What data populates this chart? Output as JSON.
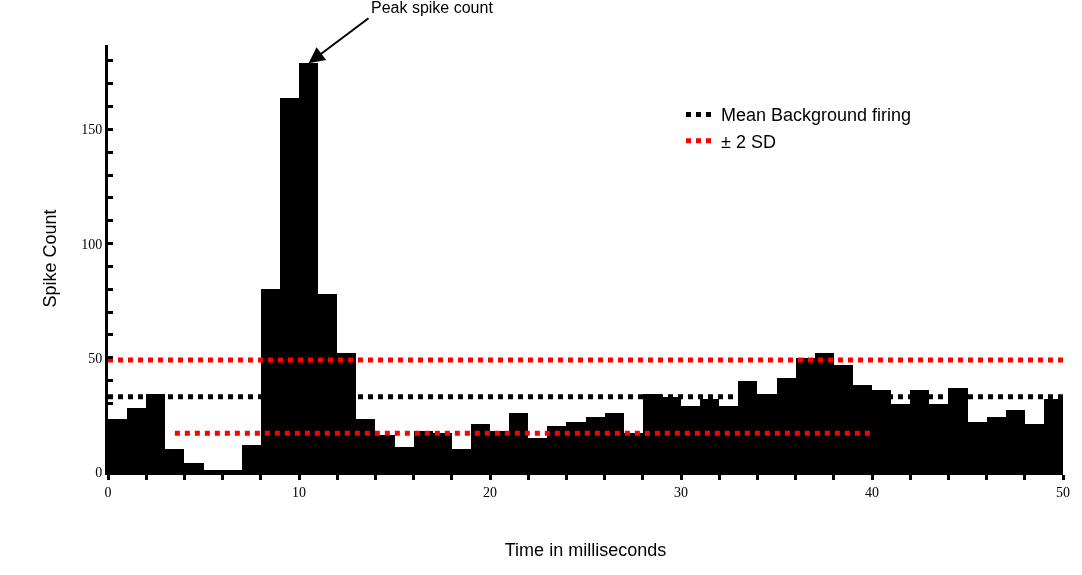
{
  "chart_data": {
    "type": "histogram",
    "xlabel": "Time in milliseconds",
    "ylabel": "Spike Count",
    "bins": [
      0,
      1,
      2,
      3,
      4,
      5,
      6,
      7,
      8,
      9,
      10,
      11,
      12,
      13,
      14,
      15,
      16,
      17,
      18,
      19,
      20,
      21,
      22,
      23,
      24,
      25,
      26,
      27,
      28,
      29,
      30,
      31,
      32,
      33,
      34,
      35,
      36,
      37,
      38,
      39,
      40,
      41,
      42,
      43,
      44,
      45,
      46,
      47,
      48,
      49,
      50
    ],
    "values": [
      23,
      28,
      34,
      10,
      4,
      1,
      1,
      12,
      80,
      164,
      179,
      78,
      52,
      23,
      16,
      11,
      18,
      17,
      10,
      21,
      18,
      26,
      15,
      20,
      22,
      24,
      26,
      17,
      34,
      33,
      29,
      32,
      29,
      40,
      34,
      41,
      50,
      52,
      47,
      38,
      36,
      30,
      36,
      30,
      37,
      22,
      24,
      27,
      21,
      32
    ],
    "color": "#000000",
    "series": [
      {
        "type": "line",
        "name": "Mean Background firing",
        "color": "#000000",
        "line_style": "dotted",
        "x": [
          0,
          50
        ],
        "values": [
          33,
          33
        ]
      },
      {
        "type": "line",
        "name": "± 2 SD",
        "color": "#ff0000",
        "line_style": "dotted",
        "x": [
          0,
          50
        ],
        "values": [
          49,
          49
        ]
      },
      {
        "type": "line",
        "color": "#ff0000",
        "line_style": "dotted",
        "x": [
          3.5,
          40
        ],
        "values": [
          17,
          17
        ]
      }
    ],
    "annotations": [
      {
        "text": "Peak spike count",
        "x": 10.5,
        "y": 179
      }
    ],
    "xlim": [
      0,
      50
    ],
    "xticks": [
      0,
      {
        "value": 2,
        "label": null
      },
      {
        "value": 4,
        "label": null
      },
      {
        "value": 6,
        "label": null
      },
      {
        "value": 8,
        "label": null
      },
      10,
      {
        "value": 12,
        "label": null
      },
      {
        "value": 14,
        "label": null
      },
      {
        "value": 16,
        "label": null
      },
      {
        "value": 18,
        "label": null
      },
      20,
      {
        "value": 22,
        "label": null
      },
      {
        "value": 24,
        "label": null
      },
      {
        "value": 26,
        "label": null
      },
      {
        "value": 28,
        "label": null
      },
      30,
      {
        "value": 32,
        "label": null
      },
      {
        "value": 34,
        "label": null
      },
      {
        "value": 36,
        "label": null
      },
      {
        "value": 38,
        "label": null
      },
      40,
      {
        "value": 42,
        "label": null
      },
      {
        "value": 44,
        "label": null
      },
      {
        "value": 46,
        "label": null
      },
      {
        "value": 48,
        "label": null
      },
      50
    ],
    "ylim": [
      0,
      187
    ],
    "yticks": [
      0,
      {
        "value": 10,
        "label": null
      },
      {
        "value": 20,
        "label": null
      },
      {
        "value": 30,
        "label": null
      },
      {
        "value": 40,
        "label": null
      },
      50,
      {
        "value": 60,
        "label": null
      },
      {
        "value": 70,
        "label": null
      },
      {
        "value": 80,
        "label": null
      },
      {
        "value": 90,
        "label": null
      },
      100,
      {
        "value": 110,
        "label": null
      },
      {
        "value": 120,
        "label": null
      },
      {
        "value": 130,
        "label": null
      },
      {
        "value": 140,
        "label": null
      },
      150,
      {
        "value": 160,
        "label": null
      },
      {
        "value": 170,
        "label": null
      },
      {
        "value": 180,
        "label": null
      }
    ],
    "grid": false,
    "legend": "top right"
  }
}
